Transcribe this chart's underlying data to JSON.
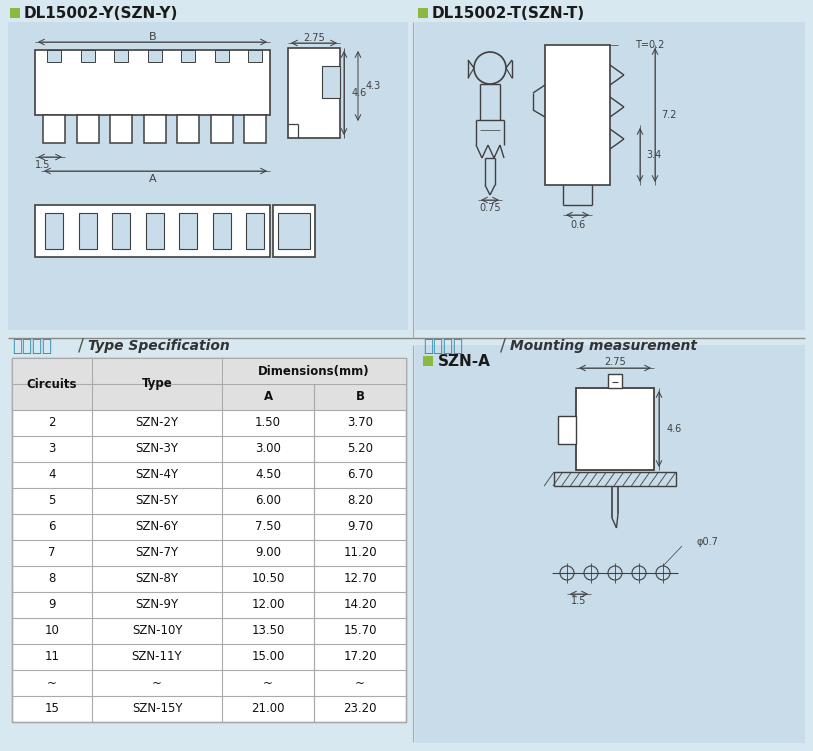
{
  "bg_color": "#d8e8f0",
  "panel_bg": "#c8dcea",
  "white": "#ffffff",
  "lc": "#404040",
  "green_square": "#8ab840",
  "cyan_text": "#3090b0",
  "left_title": "DL15002-Y(SZN-Y)",
  "right_title": "DL15002-T(SZN-T)",
  "spec_cn": "型号规格",
  "spec_en": "Type Specification",
  "mount_cn": "安装尺寸",
  "mount_en": "Mounting measurement",
  "szna_label": "SZN-A",
  "circuits": [
    "2",
    "3",
    "4",
    "5",
    "6",
    "7",
    "8",
    "9",
    "10",
    "11",
    "~",
    "15"
  ],
  "types": [
    "SZN-2Y",
    "SZN-3Y",
    "SZN-4Y",
    "SZN-5Y",
    "SZN-6Y",
    "SZN-7Y",
    "SZN-8Y",
    "SZN-9Y",
    "SZN-10Y",
    "SZN-11Y",
    "~",
    "SZN-15Y"
  ],
  "dim_a": [
    "1.50",
    "3.00",
    "4.50",
    "6.00",
    "7.50",
    "9.00",
    "10.50",
    "12.00",
    "13.50",
    "15.00",
    "~",
    "21.00"
  ],
  "dim_b": [
    "3.70",
    "5.20",
    "6.70",
    "8.20",
    "9.70",
    "11.20",
    "12.70",
    "14.20",
    "15.70",
    "17.20",
    "~",
    "23.20"
  ]
}
